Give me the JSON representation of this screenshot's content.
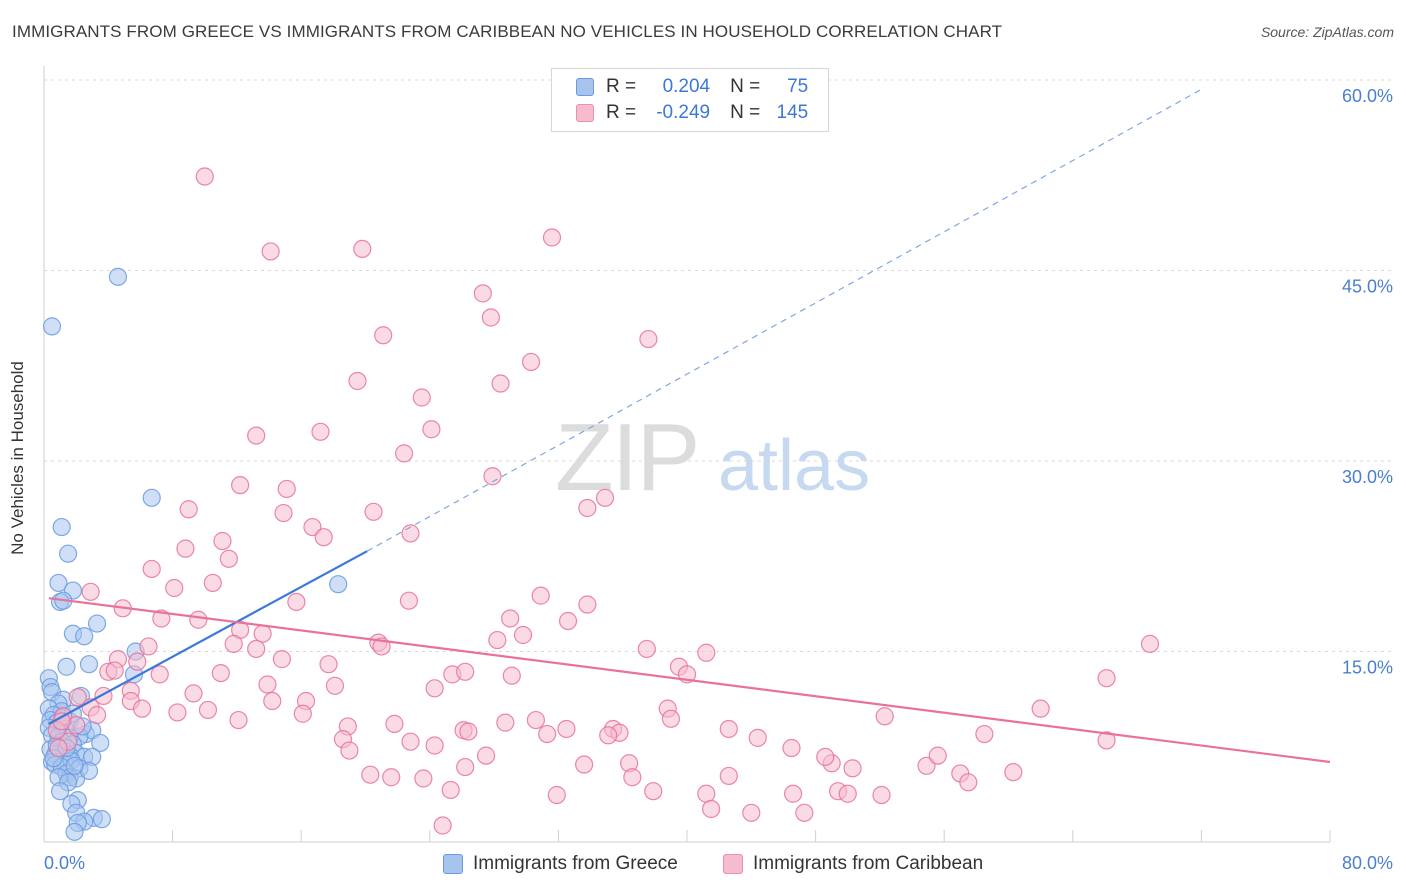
{
  "title": "IMMIGRANTS FROM GREECE VS IMMIGRANTS FROM CARIBBEAN NO VEHICLES IN HOUSEHOLD CORRELATION CHART",
  "source": "Source: ZipAtlas.com",
  "watermark": {
    "zip": "ZIP",
    "atlas": "atlas"
  },
  "legend": {
    "r_label": "R =",
    "n_label": "N =",
    "rows": [
      {
        "series": "Immigrants from Greece",
        "r": "0.204",
        "n": "75",
        "color": "#a8c4ee",
        "border": "#6a9be0"
      },
      {
        "series": "Immigrants from Caribbean",
        "r": "-0.249",
        "n": "145",
        "color": "#f6bccd",
        "border": "#ec8faa"
      }
    ]
  },
  "chart_data": {
    "type": "scatter",
    "title": "IMMIGRANTS FROM GREECE VS IMMIGRANTS FROM CARIBBEAN NO VEHICLES IN HOUSEHOLD CORRELATION CHART",
    "xlabel": "",
    "ylabel": "No Vehicles in Household",
    "xlim": [
      0,
      80
    ],
    "ylim": [
      0,
      60
    ],
    "x_tick_labels": [
      "0.0%",
      "80.0%"
    ],
    "y_ticks": [
      15,
      30,
      45,
      60
    ],
    "y_tick_labels": [
      "15.0%",
      "30.0%",
      "45.0%",
      "60.0%"
    ],
    "grid": true,
    "legend_position": "top-center",
    "series": [
      {
        "name": "Immigrants from Greece",
        "color": "#6a9be0",
        "fill": "#a8c4ee",
        "r": 0.204,
        "n": 75,
        "trend": {
          "x0": 0.3,
          "y0": 9.3,
          "x1": 20.1,
          "y1": 22.9,
          "dash_to_x": 72.2,
          "dash_to_y": 59.4
        },
        "points": [
          [
            4.6,
            44.5
          ],
          [
            0.5,
            40.6
          ],
          [
            6.7,
            27.1
          ],
          [
            1.1,
            24.8
          ],
          [
            1.5,
            22.7
          ],
          [
            18.3,
            20.3
          ],
          [
            0.9,
            20.4
          ],
          [
            1.8,
            19.8
          ],
          [
            1.0,
            18.9
          ],
          [
            1.2,
            19.0
          ],
          [
            3.3,
            17.2
          ],
          [
            1.8,
            16.4
          ],
          [
            2.5,
            16.2
          ],
          [
            5.7,
            15.0
          ],
          [
            1.4,
            13.8
          ],
          [
            2.8,
            14.0
          ],
          [
            5.6,
            13.2
          ],
          [
            0.3,
            12.9
          ],
          [
            0.4,
            12.2
          ],
          [
            0.5,
            11.8
          ],
          [
            1.2,
            11.2
          ],
          [
            0.9,
            10.9
          ],
          [
            2.3,
            11.5
          ],
          [
            0.3,
            10.5
          ],
          [
            1.1,
            10.3
          ],
          [
            0.6,
            10.0
          ],
          [
            0.4,
            9.6
          ],
          [
            0.8,
            9.4
          ],
          [
            1.6,
            9.5
          ],
          [
            0.3,
            9.0
          ],
          [
            1.3,
            8.9
          ],
          [
            2.6,
            8.5
          ],
          [
            3.0,
            8.8
          ],
          [
            0.5,
            8.4
          ],
          [
            0.9,
            8.3
          ],
          [
            2.2,
            8.3
          ],
          [
            1.6,
            8.2
          ],
          [
            3.5,
            7.8
          ],
          [
            1.1,
            7.9
          ],
          [
            1.8,
            7.7
          ],
          [
            0.4,
            7.3
          ],
          [
            1.3,
            7.1
          ],
          [
            2.0,
            7.0
          ],
          [
            0.7,
            6.9
          ],
          [
            1.6,
            6.8
          ],
          [
            2.5,
            6.7
          ],
          [
            3.0,
            6.7
          ],
          [
            0.5,
            6.3
          ],
          [
            1.3,
            6.2
          ],
          [
            1.7,
            6.4
          ],
          [
            0.7,
            6.1
          ],
          [
            1.1,
            5.9
          ],
          [
            2.2,
            5.8
          ],
          [
            1.4,
            5.4
          ],
          [
            1.6,
            5.1
          ],
          [
            0.9,
            5.1
          ],
          [
            2.0,
            5.0
          ],
          [
            1.5,
            4.7
          ],
          [
            2.8,
            5.6
          ],
          [
            1.0,
            4.0
          ],
          [
            2.1,
            3.3
          ],
          [
            1.7,
            3.0
          ],
          [
            2.0,
            2.3
          ],
          [
            3.1,
            1.9
          ],
          [
            2.5,
            1.6
          ],
          [
            2.1,
            1.5
          ],
          [
            3.6,
            1.8
          ],
          [
            1.9,
            0.8
          ],
          [
            1.2,
            9.8
          ],
          [
            1.8,
            10.1
          ],
          [
            2.4,
            9.1
          ],
          [
            0.8,
            7.6
          ],
          [
            1.4,
            7.4
          ],
          [
            0.6,
            6.6
          ],
          [
            1.9,
            6.0
          ]
        ]
      },
      {
        "name": "Immigrants from Caribbean",
        "color": "#e8729a",
        "fill": "#f6bccd",
        "r": -0.249,
        "n": 145,
        "trend": {
          "x0": 0.3,
          "y0": 19.2,
          "x1": 80.0,
          "y1": 6.3
        },
        "points": [
          [
            10.0,
            52.4
          ],
          [
            14.1,
            46.5
          ],
          [
            19.8,
            46.7
          ],
          [
            31.6,
            47.6
          ],
          [
            27.3,
            43.2
          ],
          [
            27.8,
            41.3
          ],
          [
            21.1,
            39.9
          ],
          [
            37.6,
            39.6
          ],
          [
            30.3,
            37.8
          ],
          [
            19.5,
            36.3
          ],
          [
            28.4,
            36.1
          ],
          [
            23.5,
            35.0
          ],
          [
            13.2,
            32.0
          ],
          [
            17.2,
            32.3
          ],
          [
            24.1,
            32.5
          ],
          [
            22.4,
            30.6
          ],
          [
            27.9,
            28.8
          ],
          [
            12.2,
            28.1
          ],
          [
            15.1,
            27.8
          ],
          [
            34.9,
            27.1
          ],
          [
            9.0,
            26.2
          ],
          [
            14.9,
            25.9
          ],
          [
            20.5,
            26.0
          ],
          [
            33.8,
            26.3
          ],
          [
            16.7,
            24.8
          ],
          [
            17.4,
            24.0
          ],
          [
            22.8,
            24.3
          ],
          [
            11.1,
            23.7
          ],
          [
            8.8,
            23.1
          ],
          [
            11.5,
            22.3
          ],
          [
            6.7,
            21.5
          ],
          [
            10.5,
            20.4
          ],
          [
            8.1,
            20.0
          ],
          [
            2.9,
            19.7
          ],
          [
            22.7,
            19.0
          ],
          [
            15.7,
            18.9
          ],
          [
            30.9,
            19.4
          ],
          [
            33.8,
            18.7
          ],
          [
            4.9,
            18.4
          ],
          [
            7.3,
            17.6
          ],
          [
            9.6,
            17.5
          ],
          [
            29.0,
            17.6
          ],
          [
            32.6,
            17.4
          ],
          [
            12.2,
            16.7
          ],
          [
            13.6,
            16.4
          ],
          [
            29.8,
            16.3
          ],
          [
            28.2,
            15.9
          ],
          [
            6.5,
            15.4
          ],
          [
            11.8,
            15.6
          ],
          [
            13.2,
            15.2
          ],
          [
            20.8,
            15.7
          ],
          [
            21.0,
            15.4
          ],
          [
            37.5,
            15.2
          ],
          [
            41.2,
            14.9
          ],
          [
            68.8,
            15.6
          ],
          [
            4.6,
            14.4
          ],
          [
            5.8,
            14.2
          ],
          [
            14.8,
            14.4
          ],
          [
            17.7,
            14.0
          ],
          [
            4.0,
            13.4
          ],
          [
            4.4,
            13.5
          ],
          [
            7.2,
            13.2
          ],
          [
            11.0,
            13.3
          ],
          [
            25.4,
            13.2
          ],
          [
            26.2,
            13.4
          ],
          [
            29.1,
            13.1
          ],
          [
            39.5,
            13.8
          ],
          [
            40.0,
            13.2
          ],
          [
            66.1,
            12.9
          ],
          [
            5.4,
            11.9
          ],
          [
            3.7,
            11.5
          ],
          [
            9.3,
            11.7
          ],
          [
            13.9,
            12.4
          ],
          [
            18.1,
            12.3
          ],
          [
            5.4,
            11.1
          ],
          [
            14.2,
            11.1
          ],
          [
            16.3,
            11.1
          ],
          [
            24.3,
            12.1
          ],
          [
            2.1,
            11.4
          ],
          [
            2.9,
            10.6
          ],
          [
            6.1,
            10.5
          ],
          [
            8.3,
            10.2
          ],
          [
            10.2,
            10.4
          ],
          [
            16.1,
            10.1
          ],
          [
            3.3,
            10.0
          ],
          [
            1.2,
            9.9
          ],
          [
            12.1,
            9.6
          ],
          [
            28.7,
            9.4
          ],
          [
            30.6,
            9.6
          ],
          [
            38.8,
            10.5
          ],
          [
            39.0,
            9.7
          ],
          [
            52.3,
            9.9
          ],
          [
            62.0,
            10.5
          ],
          [
            18.9,
            9.1
          ],
          [
            21.8,
            9.3
          ],
          [
            26.1,
            8.8
          ],
          [
            32.5,
            8.9
          ],
          [
            35.4,
            8.9
          ],
          [
            42.6,
            8.9
          ],
          [
            35.8,
            8.6
          ],
          [
            18.6,
            8.1
          ],
          [
            22.8,
            7.9
          ],
          [
            24.3,
            7.6
          ],
          [
            26.4,
            8.7
          ],
          [
            31.3,
            8.5
          ],
          [
            35.1,
            8.4
          ],
          [
            44.4,
            8.2
          ],
          [
            58.5,
            8.5
          ],
          [
            66.1,
            8.0
          ],
          [
            19.0,
            7.2
          ],
          [
            27.5,
            6.8
          ],
          [
            33.6,
            6.1
          ],
          [
            36.4,
            6.2
          ],
          [
            46.5,
            7.4
          ],
          [
            49.0,
            6.2
          ],
          [
            48.6,
            6.7
          ],
          [
            50.3,
            5.8
          ],
          [
            54.9,
            6.0
          ],
          [
            55.6,
            6.8
          ],
          [
            60.3,
            5.5
          ],
          [
            20.3,
            5.3
          ],
          [
            21.6,
            5.1
          ],
          [
            23.6,
            5.0
          ],
          [
            26.2,
            5.9
          ],
          [
            36.6,
            5.1
          ],
          [
            42.6,
            5.2
          ],
          [
            57.0,
            5.4
          ],
          [
            57.5,
            4.7
          ],
          [
            25.3,
            4.1
          ],
          [
            31.9,
            3.7
          ],
          [
            37.9,
            4.0
          ],
          [
            41.2,
            3.8
          ],
          [
            46.6,
            3.8
          ],
          [
            49.4,
            4.0
          ],
          [
            52.1,
            3.7
          ],
          [
            50.0,
            3.8
          ],
          [
            41.5,
            2.6
          ],
          [
            44.0,
            2.3
          ],
          [
            47.3,
            2.3
          ],
          [
            24.8,
            1.3
          ],
          [
            2.0,
            9.2
          ],
          [
            1.5,
            7.9
          ],
          [
            0.8,
            8.8
          ],
          [
            1.1,
            9.5
          ],
          [
            0.9,
            7.4
          ]
        ]
      }
    ]
  },
  "bottom_legend": [
    "Immigrants from Greece",
    "Immigrants from Caribbean"
  ]
}
